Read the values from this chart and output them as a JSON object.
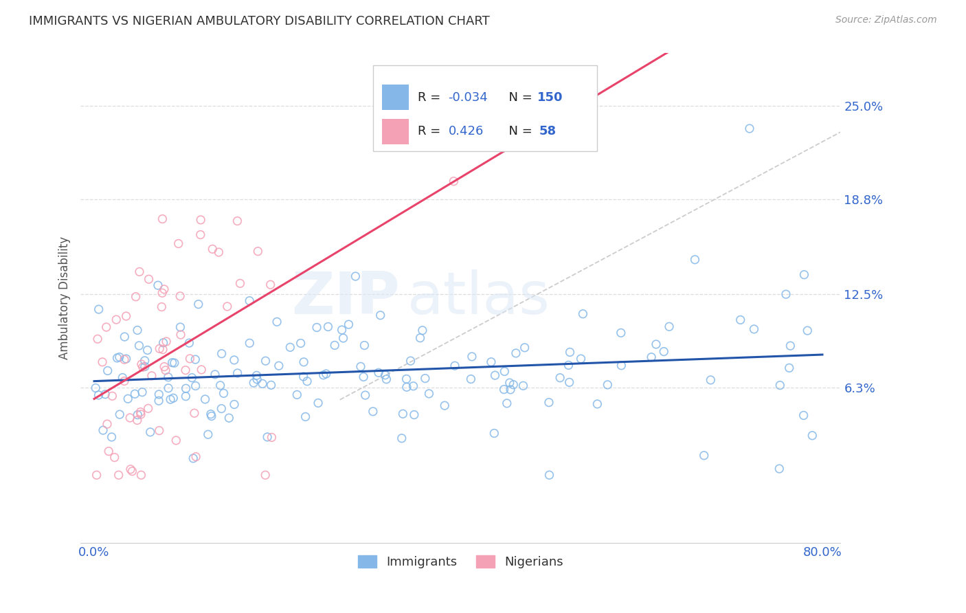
{
  "title": "IMMIGRANTS VS NIGERIAN AMBULATORY DISABILITY CORRELATION CHART",
  "source": "Source: ZipAtlas.com",
  "ylabel": "Ambulatory Disability",
  "xlim": [
    0.0,
    0.82
  ],
  "ylim": [
    -0.04,
    0.285
  ],
  "yticks": [
    0.063,
    0.125,
    0.188,
    0.25
  ],
  "ytick_labels": [
    "6.3%",
    "12.5%",
    "18.8%",
    "25.0%"
  ],
  "xticks": [
    0.0,
    0.1,
    0.2,
    0.3,
    0.4,
    0.5,
    0.6,
    0.7,
    0.8
  ],
  "xtick_labels": [
    "0.0%",
    "",
    "",
    "",
    "",
    "",
    "",
    "",
    "80.0%"
  ],
  "immigrants_R": -0.034,
  "immigrants_N": 150,
  "nigerians_R": 0.426,
  "nigerians_N": 58,
  "blue_color": "#85b8e8",
  "pink_color": "#f4a0b5",
  "blue_line_color": "#2255aa",
  "pink_line_color": "#e8436a",
  "dashed_line_color": "#cccccc",
  "axis_color": "#3366cc",
  "legend_R_color": "#3366cc",
  "watermark_color": "#dce8f5",
  "background_color": "#ffffff",
  "grid_color": "#dddddd"
}
